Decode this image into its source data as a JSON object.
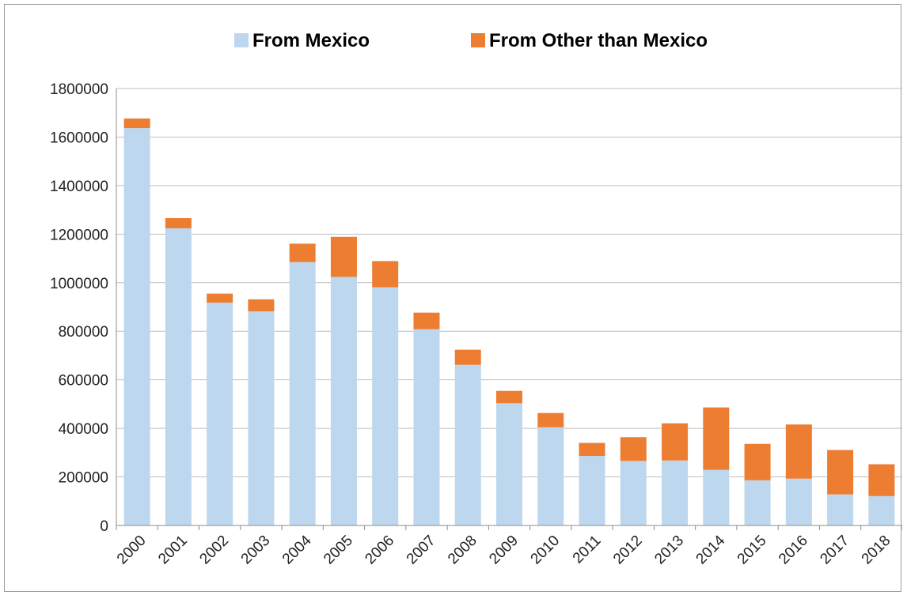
{
  "chart_data": {
    "type": "bar",
    "stacked": true,
    "categories": [
      "2000",
      "2001",
      "2002",
      "2003",
      "2004",
      "2005",
      "2006",
      "2007",
      "2008",
      "2009",
      "2010",
      "2011",
      "2012",
      "2013",
      "2014",
      "2015",
      "2016",
      "2017",
      "2018"
    ],
    "series": [
      {
        "name": "From Mexico",
        "color": "#bdd7ee",
        "values": [
          1636883,
          1224047,
          917993,
          882012,
          1085006,
          1023905,
          981066,
          808688,
          661766,
          503386,
          404365,
          286154,
          265755,
          267734,
          229178,
          186017,
          192969,
          127938,
          121105
        ]
      },
      {
        "name": "From Other than Mexico",
        "color": "#ed7d31",
        "values": [
          39555,
          42000,
          37000,
          49545,
          75800,
          165000,
          108000,
          68000,
          62000,
          51000,
          59000,
          54000,
          98000,
          153000,
          257000,
          150000,
          223000,
          183000,
          131000
        ]
      }
    ],
    "ylim": [
      0,
      1800000
    ],
    "yticks": [
      "0",
      "200000",
      "400000",
      "600000",
      "800000",
      "1000000",
      "1200000",
      "1400000",
      "1600000",
      "1800000"
    ],
    "grid": true,
    "legend_position": "top",
    "title": "",
    "xlabel": "",
    "ylabel": ""
  }
}
